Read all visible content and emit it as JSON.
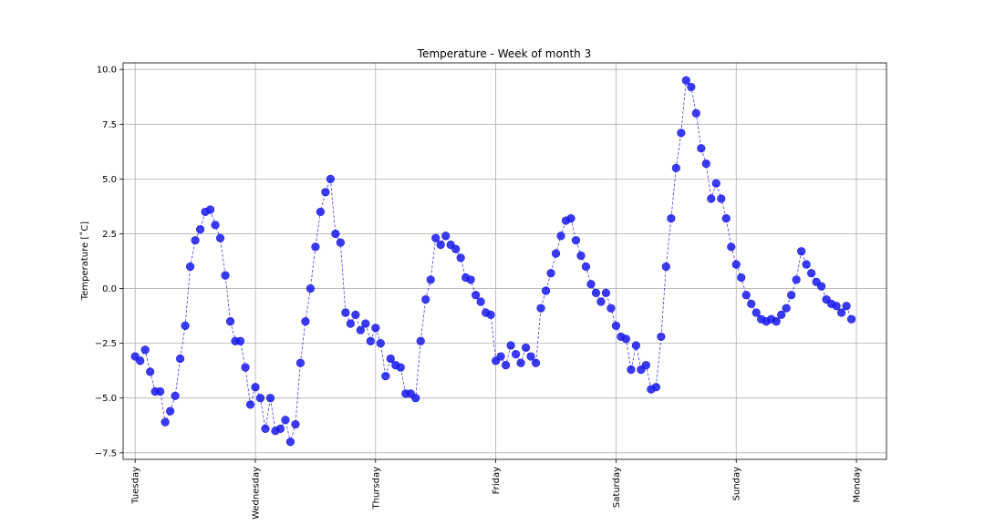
{
  "chart_data": {
    "type": "line",
    "title": "Temperature - Week of month 3",
    "xlabel": "",
    "ylabel": "Temperature [$^{\\circ}$C]",
    "ylabel_display": "Temperature [˚C]",
    "xlim": [
      -0.1,
      6.25
    ],
    "ylim": [
      -7.8,
      10.3
    ],
    "yticks": [
      -7.5,
      -5.0,
      -2.5,
      0.0,
      2.5,
      5.0,
      7.5,
      10.0
    ],
    "ytick_labels": [
      "−7.5",
      "−5.0",
      "−2.5",
      "0.0",
      "2.5",
      "5.0",
      "7.5",
      "10.0"
    ],
    "xticks": [
      0,
      1,
      2,
      3,
      4,
      5,
      6
    ],
    "xtick_labels": [
      "Tuesday",
      "Wednesday",
      "Thursday",
      "Friday",
      "Saturday",
      "Sunday",
      "Monday"
    ],
    "grid": true,
    "series": [
      {
        "color": "#1a1aee",
        "line_style": "dashed",
        "marker": "circle",
        "x": [
          0.0,
          0.04167,
          0.08333,
          0.125,
          0.16667,
          0.20833,
          0.25,
          0.29167,
          0.33333,
          0.375,
          0.41667,
          0.45833,
          0.5,
          0.54167,
          0.58333,
          0.625,
          0.66667,
          0.70833,
          0.75,
          0.79167,
          0.83333,
          0.875,
          0.91667,
          0.95833,
          1.0,
          1.04167,
          1.08333,
          1.125,
          1.16667,
          1.20833,
          1.25,
          1.29167,
          1.33333,
          1.375,
          1.41667,
          1.45833,
          1.5,
          1.54167,
          1.58333,
          1.625,
          1.66667,
          1.70833,
          1.75,
          1.79167,
          1.83333,
          1.875,
          1.91667,
          1.95833,
          2.0,
          2.04167,
          2.08333,
          2.125,
          2.16667,
          2.20833,
          2.25,
          2.29167,
          2.33333,
          2.375,
          2.41667,
          2.45833,
          2.5,
          2.54167,
          2.58333,
          2.625,
          2.66667,
          2.70833,
          2.75,
          2.79167,
          2.83333,
          2.875,
          2.91667,
          2.95833,
          3.0,
          3.04167,
          3.08333,
          3.125,
          3.16667,
          3.20833,
          3.25,
          3.29167,
          3.33333,
          3.375,
          3.41667,
          3.45833,
          3.5,
          3.54167,
          3.58333,
          3.625,
          3.66667,
          3.70833,
          3.75,
          3.79167,
          3.83333,
          3.875,
          3.91667,
          3.95833,
          4.0,
          4.04167,
          4.08333,
          4.125,
          4.16667,
          4.20833,
          4.25,
          4.29167,
          4.33333,
          4.375,
          4.41667,
          4.45833,
          4.5,
          4.54167,
          4.58333,
          4.625,
          4.66667,
          4.70833,
          4.75,
          4.79167,
          4.83333,
          4.875,
          4.91667,
          4.95833,
          5.0,
          5.04167,
          5.08333,
          5.125,
          5.16667,
          5.20833,
          5.25,
          5.29167,
          5.33333,
          5.375,
          5.41667,
          5.45833,
          5.5,
          5.54167,
          5.58333,
          5.625,
          5.66667,
          5.70833,
          5.75,
          5.79167,
          5.83333,
          5.875,
          5.91667,
          5.95833
        ],
        "y": [
          -3.1,
          -3.3,
          -2.8,
          -3.8,
          -4.7,
          -4.7,
          -6.1,
          -5.6,
          -4.9,
          -3.2,
          -1.7,
          1.0,
          2.2,
          2.7,
          3.5,
          3.6,
          2.9,
          2.3,
          0.6,
          -1.5,
          -2.4,
          -2.4,
          -3.6,
          -5.3,
          -4.5,
          -5.0,
          -6.4,
          -5.0,
          -6.5,
          -6.4,
          -6.0,
          -7.0,
          -6.2,
          -3.4,
          -1.5,
          0.0,
          1.9,
          3.5,
          4.4,
          5.0,
          2.5,
          2.1,
          -1.1,
          -1.6,
          -1.2,
          -1.9,
          -1.6,
          -2.4,
          -1.8,
          -2.5,
          -4.0,
          -3.2,
          -3.5,
          -3.6,
          -4.8,
          -4.8,
          -5.0,
          -2.4,
          -0.5,
          0.4,
          2.3,
          2.0,
          2.4,
          2.0,
          1.8,
          1.4,
          0.5,
          0.4,
          -0.3,
          -0.6,
          -1.1,
          -1.2,
          -3.3,
          -3.1,
          -3.5,
          -2.6,
          -3.0,
          -3.4,
          -2.7,
          -3.1,
          -3.4,
          -0.9,
          -0.1,
          0.7,
          1.6,
          2.4,
          3.1,
          3.2,
          2.2,
          1.5,
          1.0,
          0.2,
          -0.2,
          -0.6,
          -0.2,
          -0.9,
          -1.7,
          -2.2,
          -2.3,
          -3.7,
          -2.6,
          -3.7,
          -3.5,
          -4.6,
          -4.5,
          -2.2,
          1.0,
          3.2,
          5.5,
          7.1,
          9.5,
          9.2,
          8.0,
          6.4,
          5.7,
          4.1,
          4.8,
          4.1,
          3.2,
          1.9,
          1.1,
          0.5,
          -0.3,
          -0.7,
          -1.1,
          -1.4,
          -1.5,
          -1.4,
          -1.5,
          -1.2,
          -0.9,
          -0.3,
          0.4,
          1.7,
          1.1,
          0.7,
          0.3,
          0.1,
          -0.5,
          -0.7,
          -0.8,
          -1.1,
          -0.8,
          -1.4
        ]
      }
    ]
  }
}
